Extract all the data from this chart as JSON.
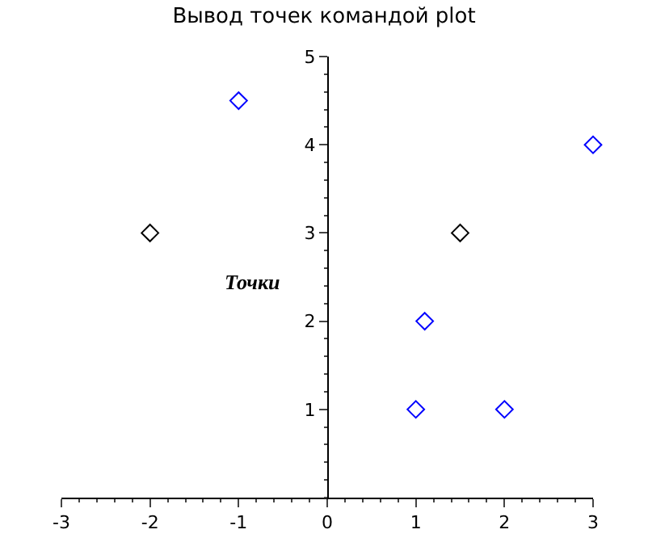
{
  "chart_data": {
    "type": "scatter",
    "title": "Вывод точек командой plot",
    "marker": "diamond",
    "grid": false,
    "xlim": [
      -3,
      3
    ],
    "xticks": [
      -3,
      -2,
      -1,
      0,
      1,
      2,
      3
    ],
    "ylim": [
      0,
      5
    ],
    "yticks": [
      1,
      2,
      3,
      4,
      5
    ],
    "series": [
      {
        "color": "#000000",
        "x": [
          -2,
          1.5
        ],
        "values": [
          3,
          3
        ]
      },
      {
        "color": "#0000ff",
        "x": [
          -1,
          1.1,
          1,
          2,
          3
        ],
        "values": [
          4.5,
          2,
          1,
          1,
          4
        ]
      }
    ],
    "annotations": [
      "Точки"
    ]
  }
}
